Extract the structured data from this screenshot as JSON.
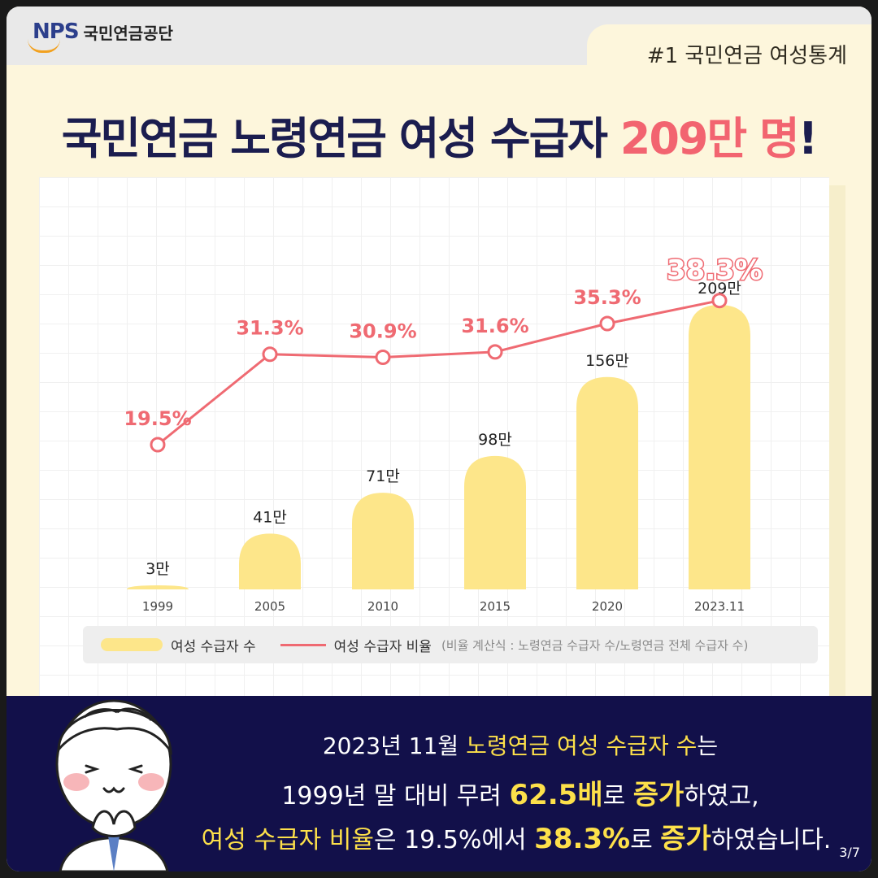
{
  "header": {
    "logo_mark": "NPS",
    "logo_name": "국민연금공단",
    "tag": "#1 국민연금 여성통계"
  },
  "headline": {
    "prefix": "국민연금 노령연금 여성 수급자 ",
    "highlight": "209만 명",
    "suffix": "!"
  },
  "legend": {
    "bar_label": "여성 수급자 수",
    "line_label": "여성 수급자 비율",
    "note": "(비율 계산식 : 노령연금 수급자 수/노령연금 전체 수급자 수)"
  },
  "chart_data": {
    "type": "bar+line",
    "categories": [
      "1999",
      "2005",
      "2010",
      "2015",
      "2020",
      "2023.11"
    ],
    "series": [
      {
        "name": "여성 수급자 수",
        "type": "bar",
        "values": [
          3,
          41,
          71,
          98,
          156,
          209
        ],
        "labels": [
          "3만",
          "41만",
          "71만",
          "98만",
          "156만",
          "209만"
        ],
        "color": "#fde68a"
      },
      {
        "name": "여성 수급자 비율",
        "type": "line",
        "values": [
          19.5,
          31.3,
          30.9,
          31.6,
          35.3,
          38.3
        ],
        "labels": [
          "19.5%",
          "31.3%",
          "30.9%",
          "31.6%",
          "35.3%",
          "38.3%"
        ],
        "color": "#ef6a72"
      }
    ],
    "title": "국민연금 노령연금 여성 수급자 209만 명!",
    "xlabel": "",
    "ylabel": "",
    "grid": true,
    "legend_position": "bottom"
  },
  "footer": {
    "l1_a": "2023년 11월 ",
    "l1_b": "노령연금 여성 수급자 수",
    "l1_c": "는",
    "l2_a": "1999년 말 대비 무려 ",
    "l2_b": "62.5배",
    "l2_c": "로 ",
    "l2_d": "증가",
    "l2_e": "하였고,",
    "l3_a": "여성 수급자 비율",
    "l3_b": "은 19.5%에서 ",
    "l3_c": "38.3%",
    "l3_d": "로 ",
    "l3_e": "증가",
    "l3_f": "하였습니다.",
    "page": "3/7"
  },
  "colors": {
    "background": "#fdf6dc",
    "navy": "#12104a",
    "accent_red": "#f26470",
    "bar_yellow": "#fde68a",
    "highlight_yellow": "#fde04a"
  }
}
